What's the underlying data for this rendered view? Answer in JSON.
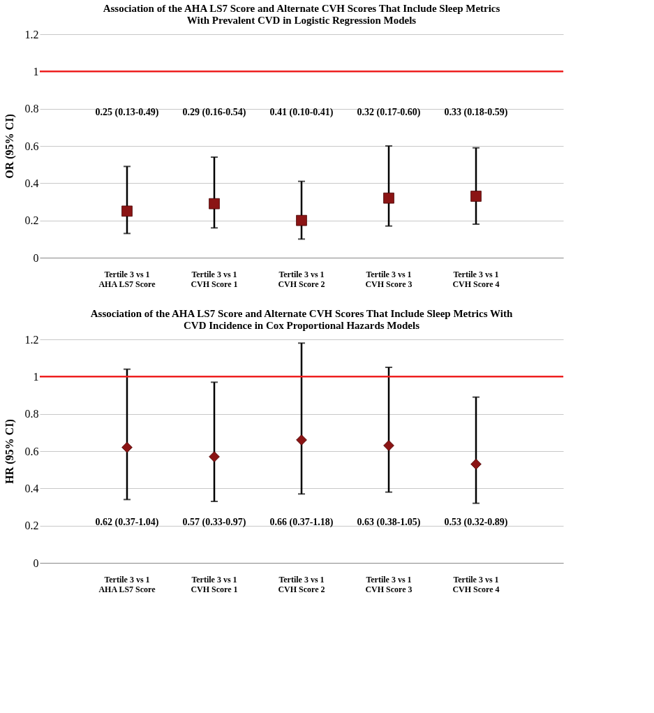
{
  "chart_data": [
    {
      "type": "scatter",
      "title": "Association of the AHA LS7 Score and Alternate CVH Scores  That Include Sleep Metrics\nWith Prevalent CVD in Logistic Regression Models",
      "ylabel": "OR (95% CI)",
      "categories": [
        "Tertile 3  vs  1\nAHA LS7 Score",
        "Tertile 3  vs  1\nCVH Score 1",
        "Tertile 3  vs  1\nCVH Score 2",
        "Tertile 3  vs  1\nCVH Score 3",
        "Tertile 3  vs  1\nCVH Score 4"
      ],
      "series": [
        {
          "color": "#8b1414",
          "values": [
            0.25,
            0.29,
            0.2,
            0.32,
            0.33
          ],
          "errors": [
            [
              0.13,
              0.49
            ],
            [
              0.16,
              0.54
            ],
            [
              0.1,
              0.41
            ],
            [
              0.17,
              0.6
            ],
            [
              0.18,
              0.59
            ]
          ]
        }
      ],
      "marker": "square",
      "ylim": [
        0,
        1.2
      ],
      "yticks": [
        0,
        0.2,
        0.4,
        0.6,
        0.8,
        1,
        1.2
      ],
      "grid": "y",
      "ref_lines": [
        {
          "axis": "y",
          "value": 1,
          "color": "#ee2020"
        }
      ],
      "annotations": [
        "0.25 (0.13-0.49)",
        "0.29 (0.16-0.54)",
        "0.41 (0.10-0.41)",
        "0.32 (0.17-0.60)",
        "0.33 (0.18-0.59)"
      ]
    },
    {
      "type": "scatter",
      "title": "Association of the AHA LS7 Score and Alternate CVH Scores  That Include Sleep Metrics  With\nCVD Incidence in Cox Proportional Hazards Models",
      "ylabel": "HR (95% CI)",
      "categories": [
        "Tertile 3  vs  1\nAHA LS7 Score",
        "Tertile 3  vs  1\nCVH Score 1",
        "Tertile 3  vs  1\nCVH Score 2",
        "Tertile 3  vs  1\nCVH Score 3",
        "Tertile 3  vs  1\nCVH Score 4"
      ],
      "series": [
        {
          "color": "#8b1414",
          "values": [
            0.62,
            0.57,
            0.66,
            0.63,
            0.53
          ],
          "errors": [
            [
              0.34,
              1.04
            ],
            [
              0.33,
              0.97
            ],
            [
              0.37,
              1.18
            ],
            [
              0.38,
              1.05
            ],
            [
              0.32,
              0.89
            ]
          ]
        }
      ],
      "marker": "diamond",
      "ylim": [
        0,
        1.2
      ],
      "yticks": [
        0,
        0.2,
        0.4,
        0.6,
        0.8,
        1,
        1.2
      ],
      "grid": "y",
      "ref_lines": [
        {
          "axis": "y",
          "value": 1,
          "color": "#ee2020"
        }
      ],
      "annotations": [
        "0.62 (0.37-1.04)",
        "0.57 (0.33-0.97)",
        "0.66 (0.37-1.18)",
        "0.63 (0.38-1.05)",
        "0.53 (0.32-0.89)"
      ]
    }
  ]
}
